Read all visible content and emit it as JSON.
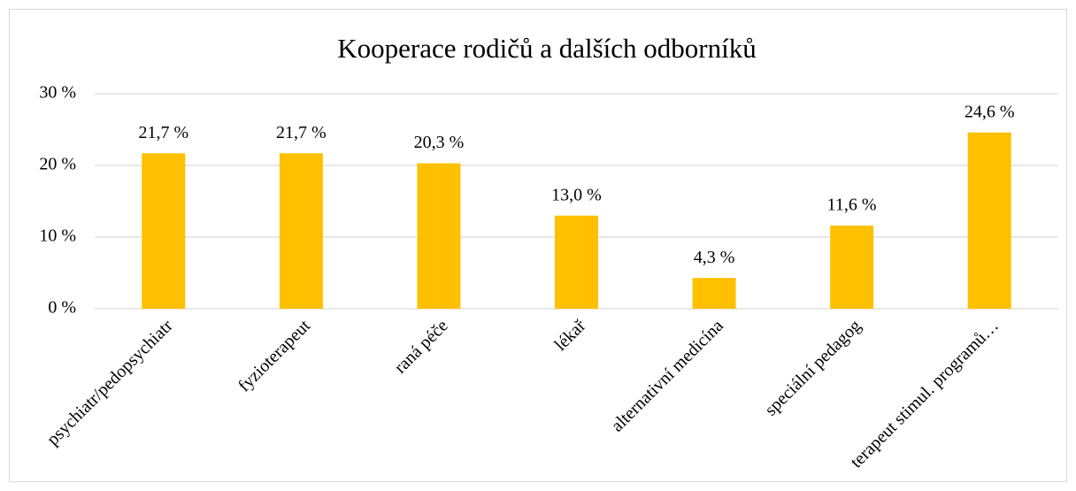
{
  "chart_data": {
    "type": "bar",
    "title": "Kooperace rodičů a dalších odborníků",
    "categories": [
      "psychiatr/pedopsychiatr",
      "fyzioterapeut",
      "raná péče",
      "lékař",
      "alternativní medicína",
      "speciální pedagog",
      "terapeut stimul. programů…"
    ],
    "values": [
      21.7,
      21.7,
      20.3,
      13.0,
      4.3,
      11.6,
      24.6
    ],
    "value_labels": [
      "21,7 %",
      "21,7 %",
      "20,3 %",
      "13,0 %",
      "4,3 %",
      "11,6 %",
      "24,6 %"
    ],
    "color": "#ffc000",
    "ylim": [
      0,
      30
    ],
    "yticks": [
      {
        "value": 0,
        "label": "0 %"
      },
      {
        "value": 10,
        "label": "10 %"
      },
      {
        "value": 20,
        "label": "20 %"
      },
      {
        "value": 30,
        "label": "30 %"
      }
    ],
    "grid": true
  }
}
